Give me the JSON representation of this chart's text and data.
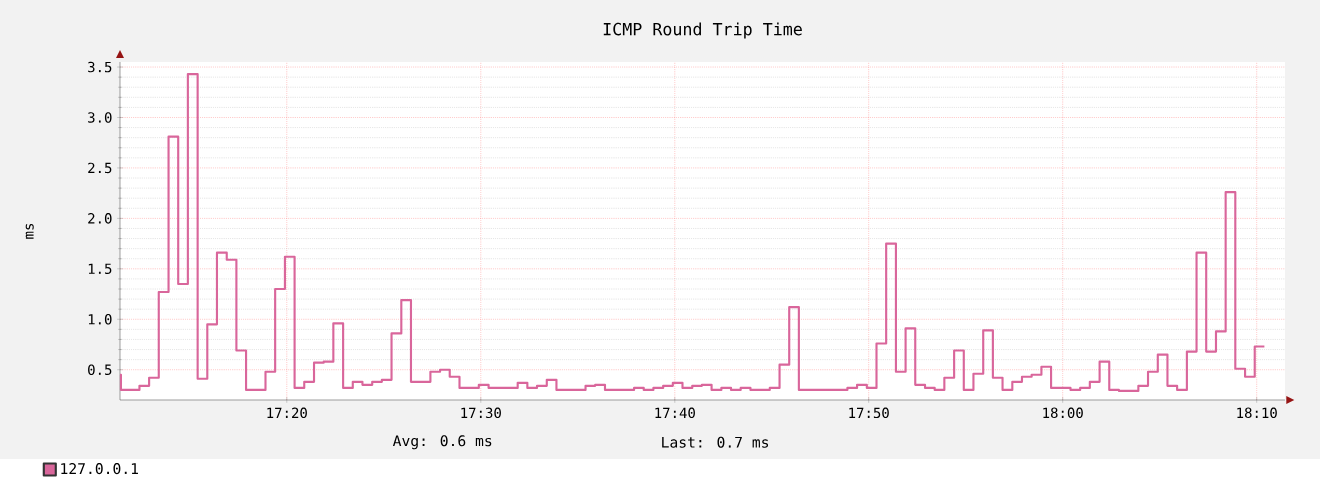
{
  "chart_data": {
    "type": "step",
    "title": "ICMP Round Trip Time",
    "ylabel": "ms",
    "x": [
      17.19,
      17.1908,
      17.2067,
      17.215,
      17.2233,
      17.2317,
      17.24,
      17.2483,
      17.2567,
      17.265,
      17.2733,
      17.2817,
      17.29,
      17.2983,
      17.315,
      17.3233,
      17.3317,
      17.34,
      17.3483,
      17.3567,
      17.365,
      17.3733,
      17.3817,
      17.39,
      17.3983,
      17.4067,
      17.415,
      17.4233,
      17.4317,
      17.44,
      17.4567,
      17.465,
      17.4733,
      17.4817,
      17.4983,
      17.5067,
      17.5317,
      17.54,
      17.5483,
      17.5567,
      17.565,
      17.59,
      17.5983,
      17.6067,
      17.6317,
      17.64,
      17.6483,
      17.6567,
      17.665,
      17.6733,
      17.6817,
      17.69,
      17.6983,
      17.7067,
      17.715,
      17.7233,
      17.7317,
      17.7483,
      17.7567,
      17.765,
      17.7733,
      17.815,
      17.8233,
      17.8317,
      17.84,
      17.8483,
      17.8567,
      17.865,
      17.8733,
      17.8817,
      17.89,
      17.8983,
      17.9067,
      17.915,
      17.9233,
      17.9317,
      17.94,
      17.9483,
      17.9567,
      17.965,
      17.9733,
      17.9817,
      17.99,
      18.0067,
      18.015,
      18.0233,
      18.0317,
      18.04,
      18.0483,
      18.065,
      18.0733,
      18.0817,
      18.09,
      18.0983,
      18.1067,
      18.115,
      18.1233,
      18.1317,
      18.14,
      18.1483,
      18.1567,
      18.165,
      18.1733
    ],
    "series": [
      {
        "name": "127.0.0.1",
        "color": "#d9669b",
        "values": [
          0.45,
          0.3,
          0.34,
          0.42,
          1.27,
          2.81,
          1.35,
          3.43,
          0.41,
          0.95,
          1.66,
          1.59,
          0.69,
          0.3,
          0.48,
          1.3,
          1.62,
          0.32,
          0.38,
          0.57,
          0.58,
          0.96,
          0.32,
          0.38,
          0.35,
          0.38,
          0.4,
          0.86,
          1.19,
          0.38,
          0.48,
          0.5,
          0.43,
          0.32,
          0.35,
          0.32,
          0.37,
          0.32,
          0.34,
          0.4,
          0.3,
          0.34,
          0.35,
          0.3,
          0.32,
          0.3,
          0.32,
          0.34,
          0.37,
          0.32,
          0.34,
          0.35,
          0.3,
          0.32,
          0.3,
          0.32,
          0.3,
          0.32,
          0.55,
          1.12,
          0.3,
          0.32,
          0.35,
          0.32,
          0.76,
          1.75,
          0.48,
          0.91,
          0.35,
          0.32,
          0.3,
          0.42,
          0.69,
          0.3,
          0.46,
          0.89,
          0.42,
          0.3,
          0.38,
          0.43,
          0.45,
          0.53,
          0.32,
          0.3,
          0.32,
          0.38,
          0.58,
          0.3,
          0.29,
          0.34,
          0.48,
          0.65,
          0.34,
          0.3,
          0.68,
          1.66,
          0.68,
          0.88,
          2.26,
          0.51,
          0.43,
          0.73,
          0.73
        ]
      }
    ],
    "xlim": [
      17.19,
      18.191
    ],
    "xticks": [
      {
        "value": 17.3333,
        "label": "17:20"
      },
      {
        "value": 17.5,
        "label": "17:30"
      },
      {
        "value": 17.6667,
        "label": "17:40"
      },
      {
        "value": 17.8333,
        "label": "17:50"
      },
      {
        "value": 18,
        "label": "18:00"
      },
      {
        "value": 18.1667,
        "label": "18:10"
      }
    ],
    "ylim": [
      0.2,
      3.55
    ],
    "yticks": [
      0.5,
      {
        "value": 1,
        "label": "1.0"
      },
      1.5,
      {
        "value": 2,
        "label": "2.0"
      },
      2.5,
      {
        "value": 3,
        "label": "3.0"
      },
      3.5
    ],
    "grid": true,
    "legend": "bottom left",
    "annotations": [
      "Avg:   0.6 ms",
      "Last:   0.7 ms"
    ]
  }
}
